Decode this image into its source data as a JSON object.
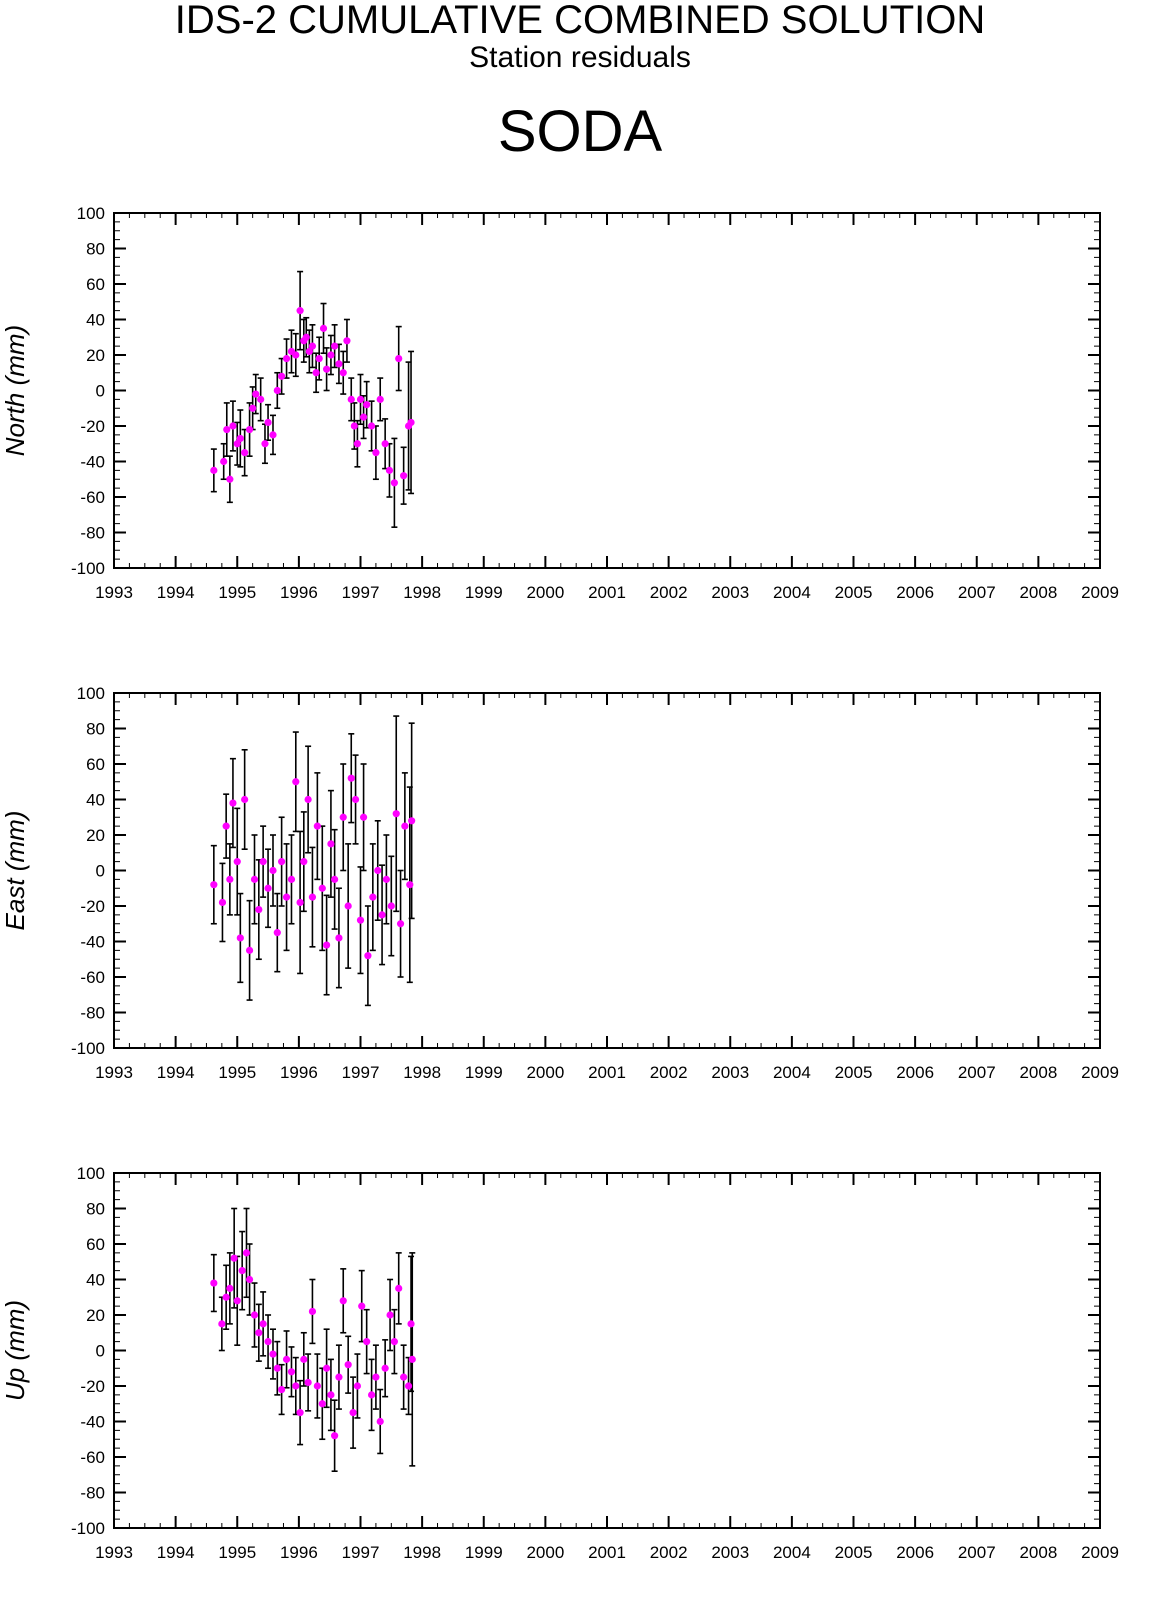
{
  "header": {
    "title": "IDS-2 CUMULATIVE COMBINED SOLUTION",
    "subtitle": "Station residuals",
    "station": "SODA"
  },
  "colors": {
    "marker": "#ff00ff",
    "errorbar": "#000000",
    "axis": "#000000"
  },
  "chart_data": [
    {
      "type": "scatter",
      "ylabel": "North (mm)",
      "xlim": [
        1993,
        2009
      ],
      "ylim": [
        -100,
        100
      ],
      "xticks": [
        "1993",
        "1994",
        "1995",
        "1996",
        "1997",
        "1998",
        "1999",
        "2000",
        "2001",
        "2002",
        "2003",
        "2004",
        "2005",
        "2006",
        "2007",
        "2008",
        "2009"
      ],
      "yticks": [
        "100",
        "80",
        "60",
        "40",
        "20",
        "0",
        "-20",
        "-40",
        "-60",
        "-80",
        "-100"
      ],
      "points": [
        [
          1994.62,
          -45,
          12
        ],
        [
          1994.78,
          -40,
          10
        ],
        [
          1994.83,
          -22,
          15
        ],
        [
          1994.88,
          -50,
          13
        ],
        [
          1994.93,
          -20,
          14
        ],
        [
          1995.0,
          -30,
          12
        ],
        [
          1995.05,
          -27,
          16
        ],
        [
          1995.12,
          -35,
          13
        ],
        [
          1995.2,
          -22,
          15
        ],
        [
          1995.25,
          -10,
          12
        ],
        [
          1995.3,
          -2,
          11
        ],
        [
          1995.38,
          -5,
          12
        ],
        [
          1995.45,
          -30,
          11
        ],
        [
          1995.5,
          -18,
          10
        ],
        [
          1995.58,
          -25,
          11
        ],
        [
          1995.65,
          0,
          10
        ],
        [
          1995.72,
          8,
          10
        ],
        [
          1995.8,
          18,
          11
        ],
        [
          1995.88,
          22,
          12
        ],
        [
          1995.95,
          20,
          12
        ],
        [
          1996.02,
          45,
          22
        ],
        [
          1996.08,
          28,
          12
        ],
        [
          1996.12,
          30,
          11
        ],
        [
          1996.17,
          22,
          12
        ],
        [
          1996.22,
          25,
          12
        ],
        [
          1996.28,
          10,
          11
        ],
        [
          1996.33,
          18,
          12
        ],
        [
          1996.4,
          35,
          14
        ],
        [
          1996.45,
          12,
          12
        ],
        [
          1996.52,
          20,
          11
        ],
        [
          1996.58,
          25,
          12
        ],
        [
          1996.65,
          15,
          11
        ],
        [
          1996.72,
          10,
          12
        ],
        [
          1996.78,
          28,
          12
        ],
        [
          1996.85,
          -5,
          12
        ],
        [
          1996.9,
          -20,
          13
        ],
        [
          1996.95,
          -30,
          13
        ],
        [
          1997.0,
          -5,
          14
        ],
        [
          1997.05,
          -15,
          12
        ],
        [
          1997.1,
          -8,
          13
        ],
        [
          1997.18,
          -20,
          14
        ],
        [
          1997.25,
          -35,
          15
        ],
        [
          1997.32,
          -5,
          12
        ],
        [
          1997.4,
          -30,
          14
        ],
        [
          1997.47,
          -45,
          15
        ],
        [
          1997.55,
          -52,
          25
        ],
        [
          1997.62,
          18,
          18
        ],
        [
          1997.7,
          -48,
          16
        ],
        [
          1997.78,
          -20,
          36
        ],
        [
          1997.82,
          -18,
          40
        ]
      ]
    },
    {
      "type": "scatter",
      "ylabel": "East (mm)",
      "xlim": [
        1993,
        2009
      ],
      "ylim": [
        -100,
        100
      ],
      "xticks": [
        "1993",
        "1994",
        "1995",
        "1996",
        "1997",
        "1998",
        "1999",
        "2000",
        "2001",
        "2002",
        "2003",
        "2004",
        "2005",
        "2006",
        "2007",
        "2008",
        "2009"
      ],
      "yticks": [
        "100",
        "80",
        "60",
        "40",
        "20",
        "0",
        "-20",
        "-40",
        "-60",
        "-80",
        "-100"
      ],
      "points": [
        [
          1994.62,
          -8,
          22
        ],
        [
          1994.76,
          -18,
          22
        ],
        [
          1994.82,
          25,
          18
        ],
        [
          1994.88,
          -5,
          20
        ],
        [
          1994.93,
          38,
          25
        ],
        [
          1995.0,
          5,
          30
        ],
        [
          1995.05,
          -38,
          25
        ],
        [
          1995.12,
          40,
          28
        ],
        [
          1995.2,
          -45,
          28
        ],
        [
          1995.28,
          -5,
          25
        ],
        [
          1995.35,
          -22,
          28
        ],
        [
          1995.42,
          5,
          20
        ],
        [
          1995.5,
          -10,
          22
        ],
        [
          1995.58,
          0,
          20
        ],
        [
          1995.65,
          -35,
          22
        ],
        [
          1995.72,
          5,
          25
        ],
        [
          1995.8,
          -15,
          30
        ],
        [
          1995.88,
          -5,
          25
        ],
        [
          1995.95,
          50,
          28
        ],
        [
          1996.02,
          -18,
          40
        ],
        [
          1996.08,
          5,
          28
        ],
        [
          1996.15,
          40,
          30
        ],
        [
          1996.22,
          -15,
          28
        ],
        [
          1996.3,
          25,
          30
        ],
        [
          1996.38,
          -10,
          35
        ],
        [
          1996.45,
          -42,
          28
        ],
        [
          1996.52,
          15,
          30
        ],
        [
          1996.58,
          -5,
          28
        ],
        [
          1996.65,
          -38,
          28
        ],
        [
          1996.72,
          30,
          30
        ],
        [
          1996.8,
          -20,
          35
        ],
        [
          1996.85,
          52,
          25
        ],
        [
          1996.92,
          40,
          25
        ],
        [
          1997.0,
          -28,
          30
        ],
        [
          1997.05,
          30,
          30
        ],
        [
          1997.12,
          -48,
          28
        ],
        [
          1997.2,
          -15,
          30
        ],
        [
          1997.28,
          0,
          28
        ],
        [
          1997.35,
          -25,
          28
        ],
        [
          1997.42,
          -5,
          25
        ],
        [
          1997.5,
          -20,
          28
        ],
        [
          1997.58,
          32,
          55
        ],
        [
          1997.65,
          -30,
          30
        ],
        [
          1997.72,
          25,
          30
        ],
        [
          1997.8,
          -8,
          55
        ],
        [
          1997.83,
          28,
          55
        ]
      ]
    },
    {
      "type": "scatter",
      "ylabel": "Up (mm)",
      "xlim": [
        1993,
        2009
      ],
      "ylim": [
        -100,
        100
      ],
      "xticks": [
        "1993",
        "1994",
        "1995",
        "1996",
        "1997",
        "1998",
        "1999",
        "2000",
        "2001",
        "2002",
        "2003",
        "2004",
        "2005",
        "2006",
        "2007",
        "2008",
        "2009"
      ],
      "yticks": [
        "100",
        "80",
        "60",
        "40",
        "20",
        "0",
        "-20",
        "-40",
        "-60",
        "-80",
        "-100"
      ],
      "points": [
        [
          1994.62,
          38,
          16
        ],
        [
          1994.75,
          15,
          15
        ],
        [
          1994.82,
          30,
          18
        ],
        [
          1994.88,
          35,
          20
        ],
        [
          1994.95,
          52,
          28
        ],
        [
          1995.0,
          28,
          25
        ],
        [
          1995.08,
          45,
          22
        ],
        [
          1995.15,
          55,
          25
        ],
        [
          1995.2,
          40,
          20
        ],
        [
          1995.28,
          20,
          18
        ],
        [
          1995.35,
          10,
          16
        ],
        [
          1995.42,
          15,
          18
        ],
        [
          1995.5,
          5,
          15
        ],
        [
          1995.58,
          -2,
          14
        ],
        [
          1995.65,
          -10,
          15
        ],
        [
          1995.72,
          -22,
          14
        ],
        [
          1995.8,
          -5,
          16
        ],
        [
          1995.88,
          -12,
          14
        ],
        [
          1995.95,
          -20,
          16
        ],
        [
          1996.02,
          -35,
          18
        ],
        [
          1996.08,
          -5,
          15
        ],
        [
          1996.15,
          -18,
          16
        ],
        [
          1996.22,
          22,
          18
        ],
        [
          1996.3,
          -20,
          18
        ],
        [
          1996.38,
          -30,
          20
        ],
        [
          1996.45,
          -10,
          22
        ],
        [
          1996.52,
          -25,
          20
        ],
        [
          1996.58,
          -48,
          20
        ],
        [
          1996.65,
          -15,
          18
        ],
        [
          1996.72,
          28,
          18
        ],
        [
          1996.8,
          -8,
          16
        ],
        [
          1996.88,
          -35,
          20
        ],
        [
          1996.95,
          -20,
          18
        ],
        [
          1997.02,
          25,
          20
        ],
        [
          1997.1,
          5,
          18
        ],
        [
          1997.18,
          -25,
          20
        ],
        [
          1997.25,
          -15,
          18
        ],
        [
          1997.32,
          -40,
          18
        ],
        [
          1997.4,
          -10,
          16
        ],
        [
          1997.48,
          20,
          20
        ],
        [
          1997.55,
          5,
          18
        ],
        [
          1997.62,
          35,
          20
        ],
        [
          1997.7,
          -15,
          18
        ],
        [
          1997.78,
          -20,
          16
        ],
        [
          1997.82,
          15,
          38
        ],
        [
          1997.84,
          -5,
          60
        ]
      ]
    }
  ]
}
